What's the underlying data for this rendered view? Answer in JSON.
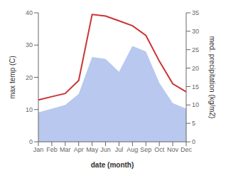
{
  "chart_data": {
    "type": "line",
    "categories": [
      "Jan",
      "Feb",
      "Mar",
      "Apr",
      "May",
      "Jun",
      "Jul",
      "Aug",
      "Sep",
      "Oct",
      "Nov",
      "Dec"
    ],
    "xlabel": "date (month)",
    "ylabel": "max temp (C)",
    "y2label": "med. precipitation (kg/m2)",
    "ylim": [
      0,
      40
    ],
    "yticks": [
      0,
      10,
      20,
      30,
      40
    ],
    "y2lim": [
      0,
      35
    ],
    "y2ticks": [
      0,
      5,
      10,
      15,
      20,
      25,
      30,
      35
    ],
    "grid": false,
    "series": [
      {
        "type": "area",
        "color": "#b8c8ee",
        "axis": "y2",
        "values": [
          8.0,
          9.0,
          10.0,
          13.0,
          23.0,
          22.5,
          19.0,
          26.0,
          24.5,
          16.0,
          10.5,
          9.0
        ]
      },
      {
        "type": "line",
        "color": "#cc3333",
        "values": [
          13.0,
          14.0,
          15.0,
          19.0,
          39.5,
          39.0,
          37.5,
          36.0,
          33.0,
          25.0,
          18.0,
          15.5
        ]
      }
    ]
  }
}
